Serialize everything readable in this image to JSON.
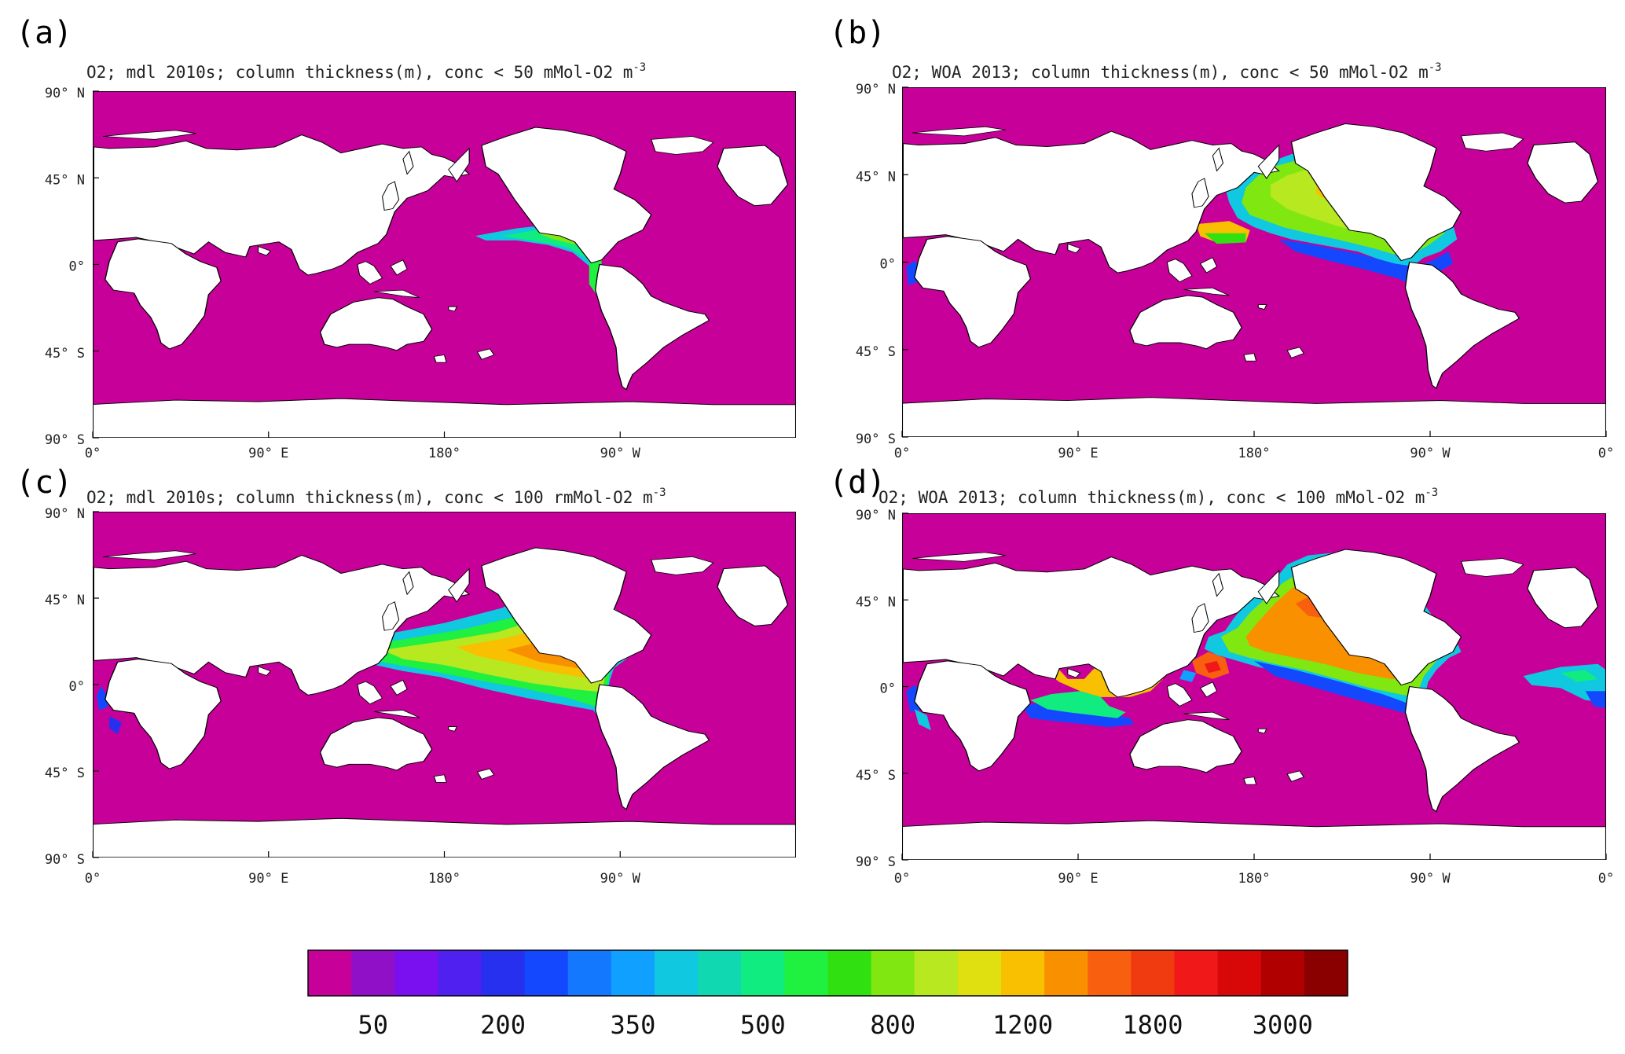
{
  "panels": [
    {
      "letter": "(a)",
      "title_main": "O2; mdl 2010s; column thickness(m), conc < 50 mMol-O2 m",
      "title_sup": "-3",
      "lat_labels": [
        "90° N",
        "45° N",
        "0°",
        "45° S",
        "90° S"
      ],
      "lon_labels": [
        "0°",
        "90° E",
        "180°",
        "90° W"
      ]
    },
    {
      "letter": "(b)",
      "title_main": "O2; WOA 2013; column thickness(m), conc < 50 mMol-O2 m",
      "title_sup": "-3",
      "lat_labels": [
        "90° N",
        "45° N",
        "0°",
        "45° S",
        "90° S"
      ],
      "lon_labels": [
        "0°",
        "90° E",
        "180°",
        "90° W",
        "0°"
      ]
    },
    {
      "letter": "(c)",
      "title_main": "O2; mdl 2010s; column thickness(m), conc < 100 rmMol-O2 m",
      "title_sup": "-3",
      "lat_labels": [
        "90° N",
        "45° N",
        "0°",
        "45° S",
        "90° S"
      ],
      "lon_labels": [
        "0°",
        "90° E",
        "180°",
        "90° W"
      ]
    },
    {
      "letter": "(d)",
      "title_main": "O2; WOA 2013; column thickness(m), conc < 100 mMol-O2 m",
      "title_sup": "-3",
      "lat_labels": [
        "90° N",
        "45° N",
        "0°",
        "45° S",
        "90° S"
      ],
      "lon_labels": [
        "0°",
        "90° E",
        "180°",
        "90° W",
        "0°"
      ]
    }
  ],
  "colorbar": {
    "colors": [
      "#c8009a",
      "#9010c8",
      "#7a10f0",
      "#5020f0",
      "#2830f0",
      "#1448ff",
      "#1478ff",
      "#10a0ff",
      "#10c8e0",
      "#10d8b0",
      "#10ec80",
      "#20f040",
      "#30e010",
      "#80e810",
      "#b8e820",
      "#e0e010",
      "#f8c000",
      "#f89000",
      "#f86010",
      "#f03a10",
      "#f01818",
      "#d80808",
      "#b00000",
      "#8a0000"
    ],
    "labels": [
      "50",
      "200",
      "350",
      "500",
      "800",
      "1200",
      "1800",
      "3000"
    ]
  },
  "colors": {
    "ocean": "#c8009a",
    "land": "#ffffff"
  }
}
